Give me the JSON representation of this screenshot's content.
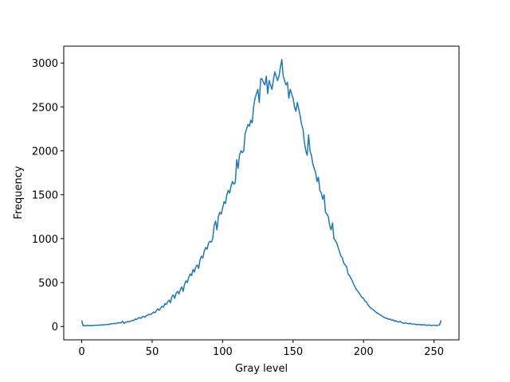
{
  "chart_data": {
    "type": "line",
    "x_label": "Gray level",
    "y_label": "Frequency",
    "x": [
      0,
      1,
      2,
      3,
      4,
      5,
      6,
      7,
      8,
      9,
      10,
      11,
      12,
      13,
      14,
      15,
      16,
      17,
      18,
      19,
      20,
      21,
      22,
      23,
      24,
      25,
      26,
      27,
      28,
      29,
      30,
      31,
      32,
      33,
      34,
      35,
      36,
      37,
      38,
      39,
      40,
      41,
      42,
      43,
      44,
      45,
      46,
      47,
      48,
      49,
      50,
      51,
      52,
      53,
      54,
      55,
      56,
      57,
      58,
      59,
      60,
      61,
      62,
      63,
      64,
      65,
      66,
      67,
      68,
      69,
      70,
      71,
      72,
      73,
      74,
      75,
      76,
      77,
      78,
      79,
      80,
      81,
      82,
      83,
      84,
      85,
      86,
      87,
      88,
      89,
      90,
      91,
      92,
      93,
      94,
      95,
      96,
      97,
      98,
      99,
      100,
      101,
      102,
      103,
      104,
      105,
      106,
      107,
      108,
      109,
      110,
      111,
      112,
      113,
      114,
      115,
      116,
      117,
      118,
      119,
      120,
      121,
      122,
      123,
      124,
      125,
      126,
      127,
      128,
      129,
      130,
      131,
      132,
      133,
      134,
      135,
      136,
      137,
      138,
      139,
      140,
      141,
      142,
      143,
      144,
      145,
      146,
      147,
      148,
      149,
      150,
      151,
      152,
      153,
      154,
      155,
      156,
      157,
      158,
      159,
      160,
      161,
      162,
      163,
      164,
      165,
      166,
      167,
      168,
      169,
      170,
      171,
      172,
      173,
      174,
      175,
      176,
      177,
      178,
      179,
      180,
      181,
      182,
      183,
      184,
      185,
      186,
      187,
      188,
      189,
      190,
      191,
      192,
      193,
      194,
      195,
      196,
      197,
      198,
      199,
      200,
      201,
      202,
      203,
      204,
      205,
      206,
      207,
      208,
      209,
      210,
      211,
      212,
      213,
      214,
      215,
      216,
      217,
      218,
      219,
      220,
      221,
      222,
      223,
      224,
      225,
      226,
      227,
      228,
      229,
      230,
      231,
      232,
      233,
      234,
      235,
      236,
      237,
      238,
      239,
      240,
      241,
      242,
      243,
      244,
      245,
      246,
      247,
      248,
      249,
      250,
      251,
      252,
      253,
      254,
      255
    ],
    "series": [
      {
        "color": "#1f77b4",
        "values": [
          70,
          8,
          10,
          9,
          12,
          10,
          11,
          9,
          13,
          12,
          14,
          15,
          13,
          18,
          16,
          20,
          17,
          22,
          25,
          21,
          30,
          28,
          33,
          35,
          31,
          38,
          42,
          40,
          45,
          60,
          35,
          48,
          52,
          58,
          55,
          62,
          70,
          68,
          85,
          80,
          95,
          100,
          92,
          110,
          115,
          105,
          125,
          130,
          140,
          135,
          150,
          165,
          155,
          180,
          200,
          185,
          210,
          230,
          220,
          260,
          250,
          280,
          300,
          270,
          340,
          360,
          320,
          380,
          400,
          370,
          420,
          450,
          400,
          480,
          520,
          500,
          560,
          600,
          580,
          650,
          620,
          680,
          700,
          660,
          760,
          800,
          780,
          860,
          900,
          880,
          950,
          970,
          960,
          1000,
          1150,
          1200,
          1100,
          1250,
          1300,
          1280,
          1350,
          1420,
          1400,
          1500,
          1550,
          1520,
          1600,
          1650,
          1620,
          1640,
          1900,
          1800,
          1950,
          2000,
          1980,
          2000,
          2200,
          2250,
          2300,
          2280,
          2350,
          2320,
          2500,
          2600,
          2650,
          2700,
          2550,
          2820,
          2820,
          2780,
          2750,
          2850,
          2650,
          2800,
          2750,
          2700,
          2800,
          2900,
          2850,
          2800,
          2850,
          2950,
          3040,
          2850,
          2800,
          2750,
          2780,
          2600,
          2700,
          2650,
          2600,
          2500,
          2450,
          2550,
          2480,
          2400,
          2300,
          2250,
          2100,
          2000,
          1950,
          2180,
          2000,
          1950,
          1850,
          1800,
          1750,
          1650,
          1700,
          1550,
          1520,
          1450,
          1500,
          1300,
          1280,
          1250,
          1150,
          1100,
          1180,
          1000,
          980,
          950,
          900,
          850,
          800,
          780,
          720,
          700,
          680,
          600,
          580,
          550,
          520,
          480,
          450,
          420,
          400,
          380,
          350,
          330,
          320,
          290,
          280,
          250,
          230,
          210,
          200,
          190,
          175,
          160,
          150,
          140,
          130,
          120,
          110,
          100,
          95,
          90,
          80,
          85,
          70,
          75,
          60,
          65,
          55,
          50,
          60,
          45,
          40,
          35,
          40,
          35,
          30,
          38,
          28,
          25,
          30,
          22,
          20,
          25,
          18,
          20,
          15,
          22,
          16,
          12,
          18,
          14,
          10,
          12,
          15,
          12,
          10,
          14,
          20,
          70
        ]
      }
    ],
    "xlim": [
      -12.75,
      267.75
    ],
    "xticks": [
      0,
      50,
      100,
      150,
      200,
      250
    ],
    "ylim": [
      -152,
      3192
    ],
    "yticks": [
      0,
      500,
      1000,
      1500,
      2000,
      2500,
      3000
    ]
  }
}
